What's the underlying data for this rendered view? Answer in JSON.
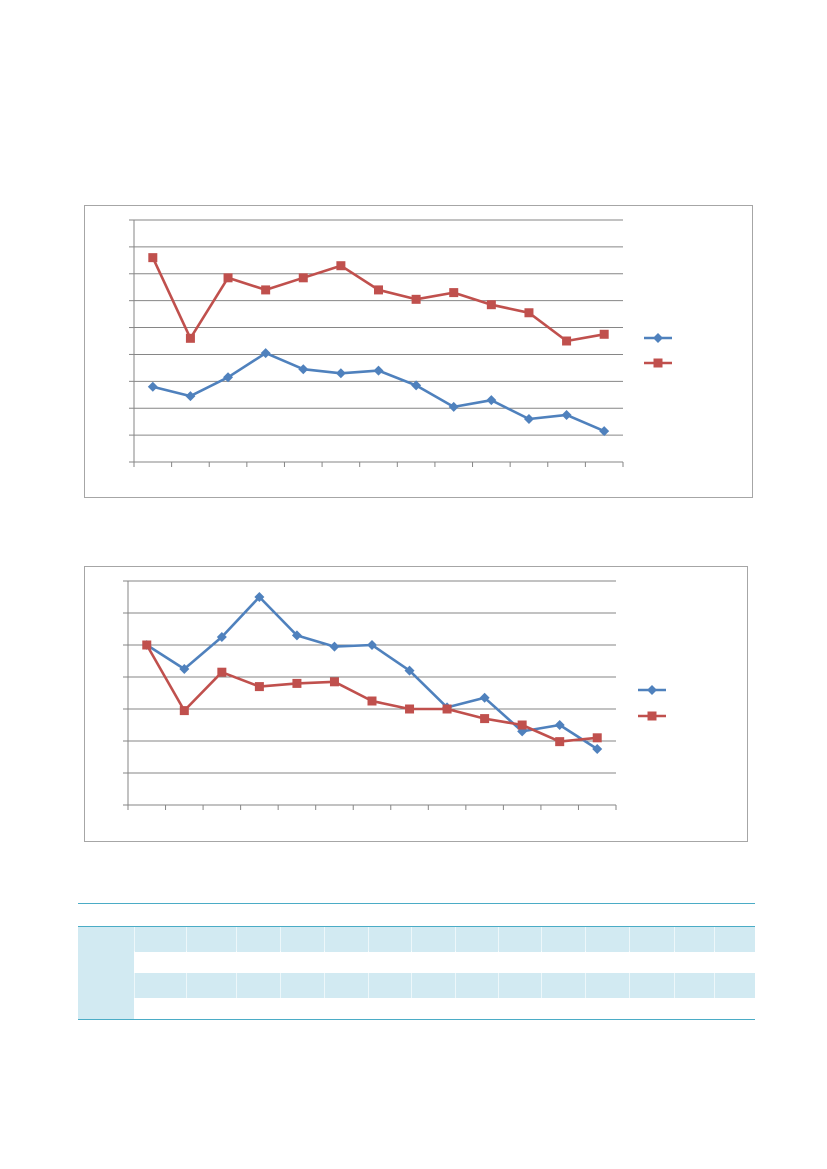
{
  "colors": {
    "series_blue": "#4f81bd",
    "series_red": "#c0504d",
    "gridline": "#868686",
    "frame": "#a6a6a6",
    "table_rule": "#4bacc6",
    "table_shade": "#d2eaf2"
  },
  "chart_data": [
    {
      "type": "line",
      "title": "",
      "xlabel": "",
      "ylabel": "",
      "categories": [
        "",
        "",
        "",
        "",
        "",
        "",
        "",
        "",
        "",
        "",
        "",
        "",
        ""
      ],
      "ylim": [
        0,
        9
      ],
      "grid": true,
      "legend_position": "right",
      "series": [
        {
          "name": "",
          "marker": "diamond",
          "color": "#4f81bd",
          "values": [
            2.8,
            2.45,
            3.15,
            4.05,
            3.45,
            3.3,
            3.4,
            2.85,
            2.05,
            2.3,
            1.6,
            1.75,
            1.15
          ]
        },
        {
          "name": "",
          "marker": "square",
          "color": "#c0504d",
          "values": [
            7.6,
            4.6,
            6.85,
            6.4,
            6.85,
            7.3,
            6.4,
            6.05,
            6.3,
            5.85,
            5.55,
            4.5,
            4.75
          ]
        }
      ]
    },
    {
      "type": "line",
      "title": "",
      "xlabel": "",
      "ylabel": "",
      "categories": [
        "",
        "",
        "",
        "",
        "",
        "",
        "",
        "",
        "",
        "",
        "",
        "",
        ""
      ],
      "ylim": [
        0,
        7
      ],
      "grid": true,
      "legend_position": "right",
      "series": [
        {
          "name": "",
          "marker": "diamond",
          "color": "#4f81bd",
          "values": [
            5.0,
            4.25,
            5.25,
            6.5,
            5.3,
            4.95,
            5.0,
            4.2,
            3.05,
            3.35,
            2.3,
            2.5,
            1.75
          ]
        },
        {
          "name": "",
          "marker": "square",
          "color": "#c0504d",
          "values": [
            5.0,
            2.95,
            4.15,
            3.7,
            3.8,
            3.85,
            3.25,
            3.0,
            3.0,
            2.7,
            2.5,
            1.98,
            2.1
          ]
        }
      ]
    }
  ],
  "table": {
    "columns": [
      "",
      "",
      "",
      "",
      "",
      "",
      "",
      "",
      "",
      "",
      "",
      "",
      "",
      "",
      ""
    ],
    "rows": [
      {
        "cells": [
          "",
          "",
          "",
          "",
          "",
          "",
          "",
          "",
          "",
          "",
          "",
          "",
          "",
          "",
          ""
        ]
      },
      {
        "cells": [
          "",
          "",
          "",
          "",
          "",
          "",
          "",
          "",
          "",
          "",
          "",
          "",
          "",
          "",
          ""
        ]
      },
      {
        "cells": [
          "",
          "",
          "",
          "",
          "",
          "",
          "",
          "",
          "",
          "",
          "",
          "",
          "",
          "",
          ""
        ]
      },
      {
        "cells": [
          "",
          "",
          "",
          "",
          "",
          "",
          "",
          "",
          "",
          "",
          "",
          "",
          "",
          "",
          ""
        ]
      }
    ]
  }
}
